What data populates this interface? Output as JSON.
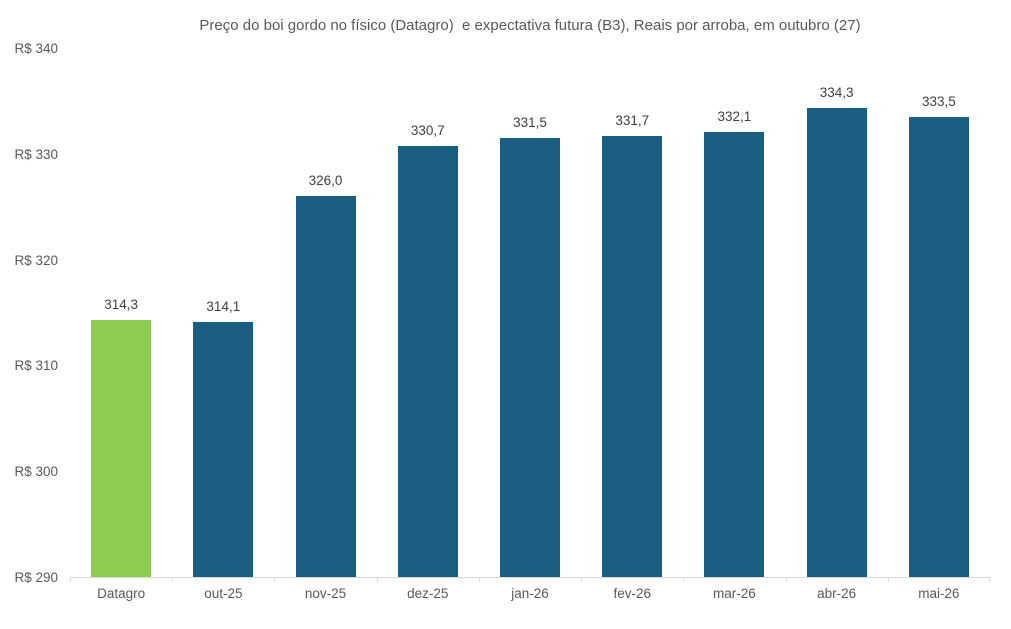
{
  "chart_data": {
    "type": "bar",
    "title": "Preço do boi gordo no físico (Datagro)  e expectativa futura (B3), Reais por arroba, em outubro (27)",
    "categories": [
      "Datagro",
      "out-25",
      "nov-25",
      "dez-25",
      "jan-26",
      "fev-26",
      "mar-26",
      "abr-26",
      "mai-26"
    ],
    "values": [
      314.3,
      314.1,
      326.0,
      330.7,
      331.5,
      331.7,
      332.1,
      334.3,
      333.5
    ],
    "value_labels": [
      "314,3",
      "314,1",
      "326,0",
      "330,7",
      "331,5",
      "331,7",
      "332,1",
      "334,3",
      "333,5"
    ],
    "xlabel": "",
    "ylabel": "",
    "ylim": [
      290,
      340
    ],
    "y_tick_values": [
      290,
      300,
      310,
      320,
      330,
      340
    ],
    "y_tick_labels": [
      "R$ 290",
      "R$ 300",
      "R$ 310",
      "R$ 320",
      "R$ 330",
      "R$ 340"
    ],
    "grid": false,
    "legend_position": "none",
    "highlight_index": 0,
    "colors": {
      "highlight_bar": "#8ccd50",
      "default_bar": "#1a5f82",
      "axis_line": "#d9d9d9",
      "title_text": "#595959",
      "tick_text": "#595959",
      "value_label_text": "#404040",
      "background": "#ffffff"
    }
  }
}
